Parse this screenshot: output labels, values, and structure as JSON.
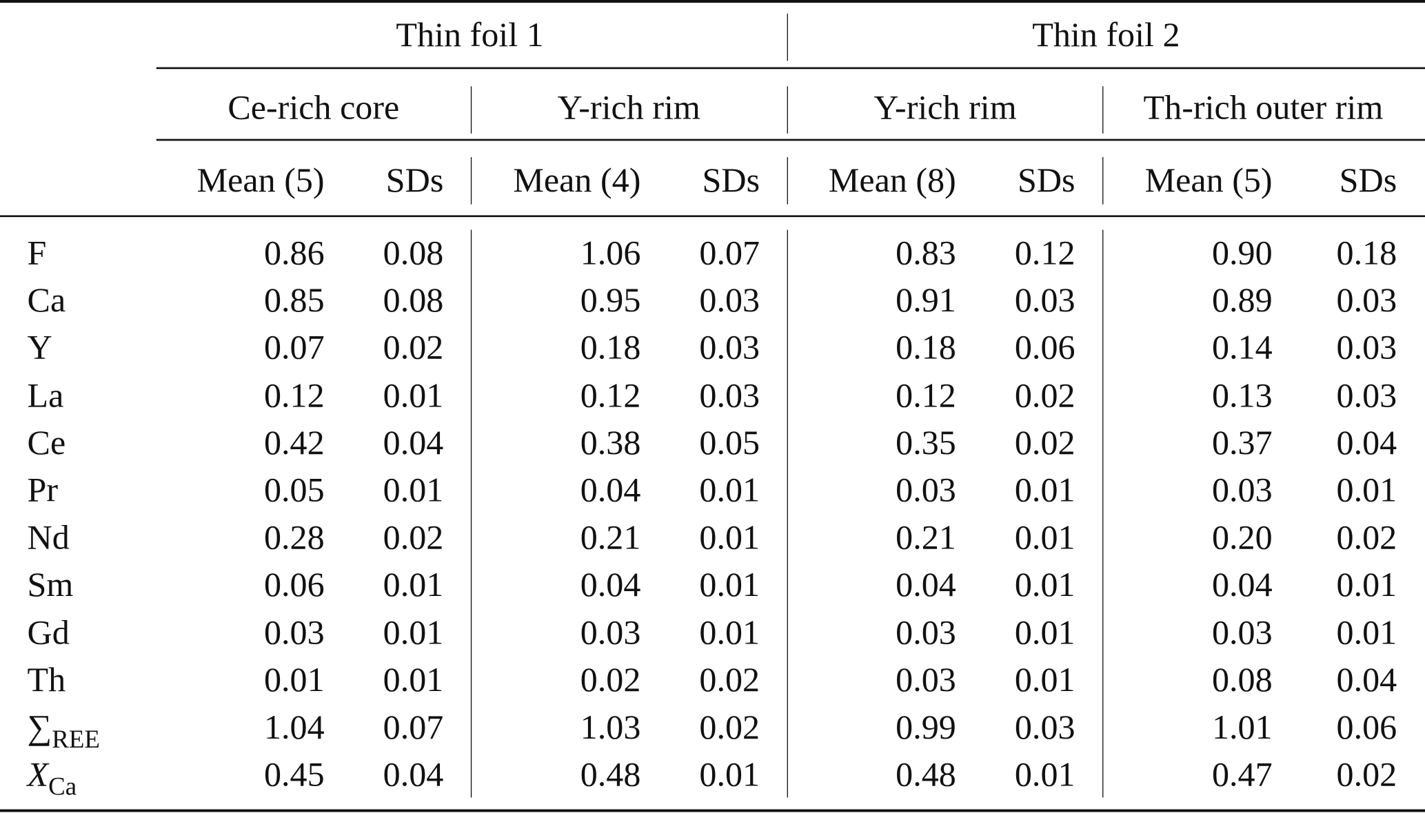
{
  "groups": [
    {
      "label": "Thin foil 1",
      "subgroups": [
        "Ce-rich core",
        "Y-rich rim"
      ]
    },
    {
      "label": "Thin foil 2",
      "subgroups": [
        "Y-rich rim",
        "Th-rich outer rim"
      ]
    }
  ],
  "column_headers": [
    "Mean (5)",
    "SDs",
    "Mean (4)",
    "SDs",
    "Mean (8)",
    "SDs",
    "Mean (5)",
    "SDs"
  ],
  "rows": [
    {
      "label": "F",
      "sub": "",
      "italic": false,
      "values": [
        "0.86",
        "0.08",
        "1.06",
        "0.07",
        "0.83",
        "0.12",
        "0.90",
        "0.18"
      ]
    },
    {
      "label": "Ca",
      "sub": "",
      "italic": false,
      "values": [
        "0.85",
        "0.08",
        "0.95",
        "0.03",
        "0.91",
        "0.03",
        "0.89",
        "0.03"
      ]
    },
    {
      "label": "Y",
      "sub": "",
      "italic": false,
      "values": [
        "0.07",
        "0.02",
        "0.18",
        "0.03",
        "0.18",
        "0.06",
        "0.14",
        "0.03"
      ]
    },
    {
      "label": "La",
      "sub": "",
      "italic": false,
      "values": [
        "0.12",
        "0.01",
        "0.12",
        "0.03",
        "0.12",
        "0.02",
        "0.13",
        "0.03"
      ]
    },
    {
      "label": "Ce",
      "sub": "",
      "italic": false,
      "values": [
        "0.42",
        "0.04",
        "0.38",
        "0.05",
        "0.35",
        "0.02",
        "0.37",
        "0.04"
      ]
    },
    {
      "label": "Pr",
      "sub": "",
      "italic": false,
      "values": [
        "0.05",
        "0.01",
        "0.04",
        "0.01",
        "0.03",
        "0.01",
        "0.03",
        "0.01"
      ]
    },
    {
      "label": "Nd",
      "sub": "",
      "italic": false,
      "values": [
        "0.28",
        "0.02",
        "0.21",
        "0.01",
        "0.21",
        "0.01",
        "0.20",
        "0.02"
      ]
    },
    {
      "label": "Sm",
      "sub": "",
      "italic": false,
      "values": [
        "0.06",
        "0.01",
        "0.04",
        "0.01",
        "0.04",
        "0.01",
        "0.04",
        "0.01"
      ]
    },
    {
      "label": "Gd",
      "sub": "",
      "italic": false,
      "values": [
        "0.03",
        "0.01",
        "0.03",
        "0.01",
        "0.03",
        "0.01",
        "0.03",
        "0.01"
      ]
    },
    {
      "label": "Th",
      "sub": "",
      "italic": false,
      "values": [
        "0.01",
        "0.01",
        "0.02",
        "0.02",
        "0.03",
        "0.01",
        "0.08",
        "0.04"
      ]
    },
    {
      "label": "∑",
      "sub": "REE",
      "italic": false,
      "values": [
        "1.04",
        "0.07",
        "1.03",
        "0.02",
        "0.99",
        "0.03",
        "1.01",
        "0.06"
      ]
    },
    {
      "label": "X",
      "sub": "Ca",
      "italic": true,
      "values": [
        "0.45",
        "0.04",
        "0.48",
        "0.01",
        "0.48",
        "0.01",
        "0.47",
        "0.02"
      ]
    }
  ]
}
